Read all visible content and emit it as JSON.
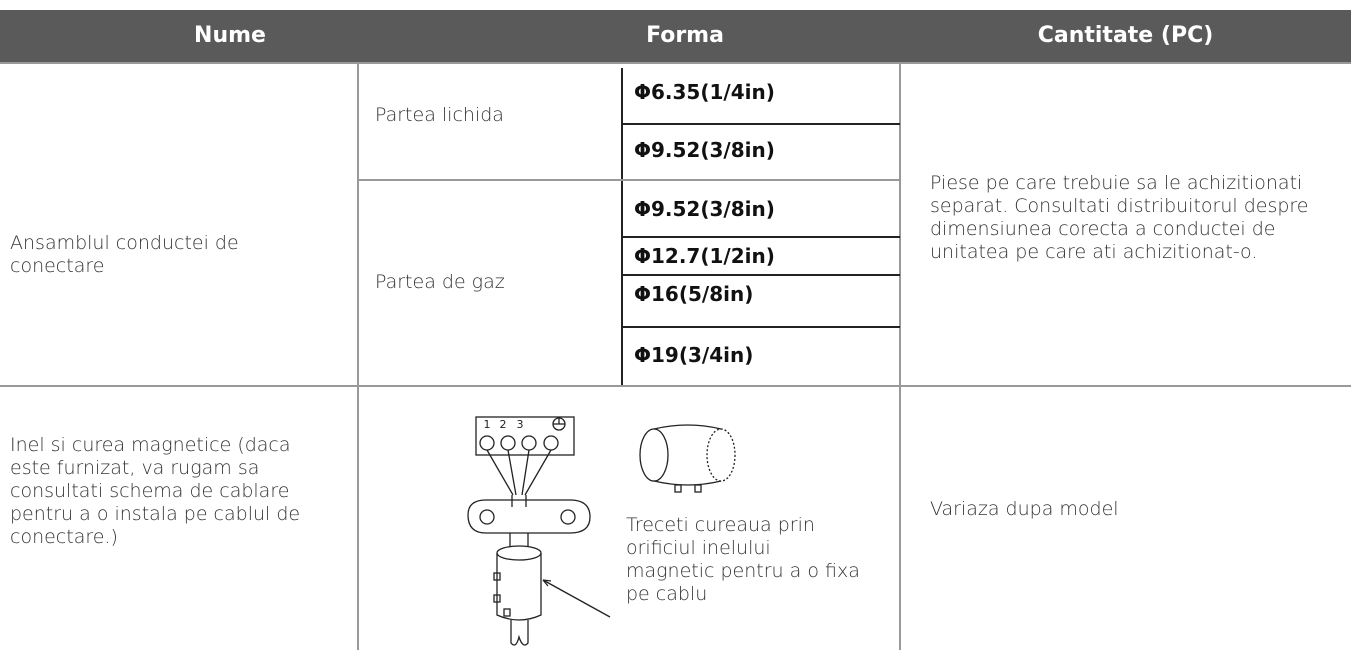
{
  "header": {
    "columns": [
      "Nume",
      "Forma",
      "Cantitate (PC)"
    ]
  },
  "rows": [
    {
      "name": "Ansamblul conductei de conectare",
      "groups": [
        {
          "label": "Partea lichida",
          "sizes": [
            "Φ6.35(1/4in)",
            "Φ9.52(3/8in)"
          ]
        },
        {
          "label": "Partea de gaz",
          "sizes": [
            "Φ9.52(3/8in)",
            "Φ12.7(1/2in)",
            "Φ16(5/8in)",
            "Φ19(3/4in)"
          ]
        }
      ],
      "quantity": "Piese pe care trebuie sa le achizitionati separat. Consultati distribuitorul despre dimensiunea corecta a conductei de unitatea pe care ati achizitionat-o."
    },
    {
      "name": "Inel si curea magnetice (daca este furnizat, va rugam sa consultati schema de cablare pentru a o instala pe cablul de conectare.)",
      "figure": {
        "terminals": [
          "1",
          "2",
          "3"
        ],
        "caption": "Treceti cureaua prin orificiul inelului magnetic pentru a o fixa pe cablu"
      },
      "quantity": "Variaza dupa model"
    }
  ]
}
